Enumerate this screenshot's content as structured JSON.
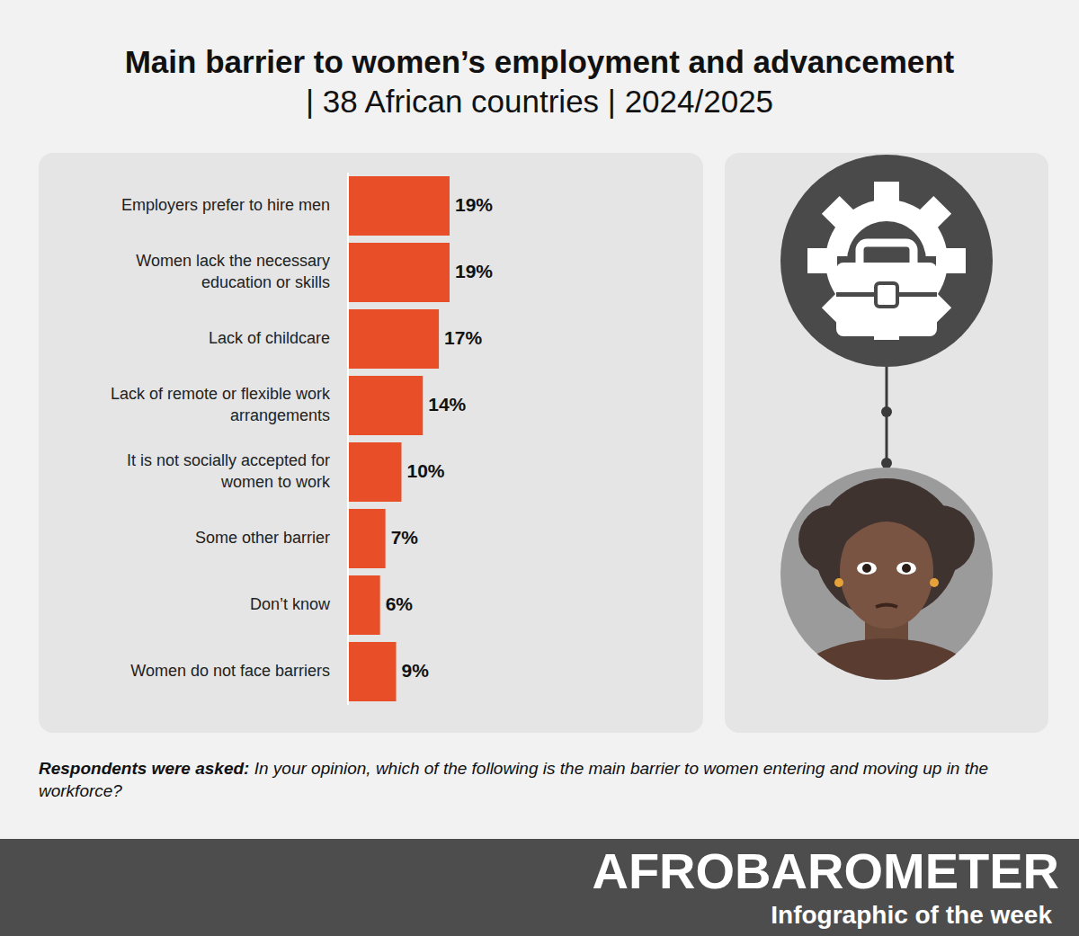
{
  "chart_data": {
    "type": "bar",
    "title": "Main barrier to women’s employment and advancement",
    "subtitle": "| 38 African countries | 2024/2025",
    "categories": [
      "Employers prefer to hire men",
      "Women lack the necessary education or skills",
      "Lack of childcare",
      "Lack of remote or flexible work arrangements",
      "It is not socially accepted for women to work",
      "Some other barrier",
      "Don’t know",
      "Women do not face barriers"
    ],
    "values": [
      19,
      19,
      17,
      14,
      10,
      7,
      6,
      9
    ],
    "value_labels": [
      "19%",
      "19%",
      "17%",
      "14%",
      "10%",
      "7%",
      "6%",
      "9%"
    ],
    "color": "#e84e27",
    "orientation": "horizontal",
    "data_labels": true,
    "tick_labels": "y"
  },
  "footnote": {
    "label": "Respondents were asked:",
    "text": "In your opinion, which of the following is the main barrier to women entering and moving up in the workforce?"
  },
  "footer": {
    "brand": "AFROBAROMETER",
    "tagline": "Infographic of the week"
  }
}
